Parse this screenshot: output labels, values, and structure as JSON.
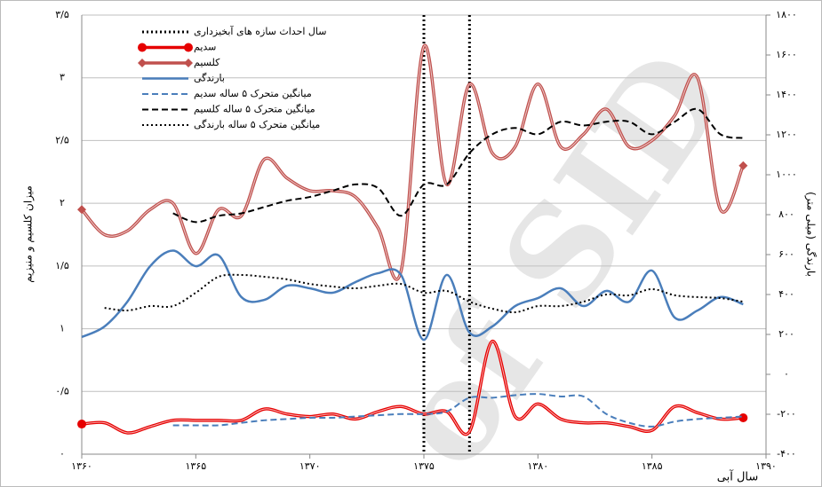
{
  "chart_data": {
    "type": "line",
    "x_title": "سال آبی",
    "y_title": "میزان کلسیم و منیزیم",
    "y2_title": "بارندگی (میلی متر)",
    "watermark": "of SID",
    "xlim": [
      1360,
      1390
    ],
    "xticks": [
      {
        "value": 1360,
        "label": "۱۳۶۰"
      },
      {
        "value": 1365,
        "label": "۱۳۶۵"
      },
      {
        "value": 1370,
        "label": "۱۳۷۰"
      },
      {
        "value": 1375,
        "label": "۱۳۷۵"
      },
      {
        "value": 1380,
        "label": "۱۳۸۰"
      },
      {
        "value": 1385,
        "label": "۱۳۸۵"
      },
      {
        "value": 1390,
        "label": "۱۳۹۰"
      }
    ],
    "ylim": [
      0,
      3.5
    ],
    "yticks": [
      {
        "value": 0,
        "label": "۰"
      },
      {
        "value": 0.5,
        "label": "۰/۵"
      },
      {
        "value": 1,
        "label": "۱"
      },
      {
        "value": 1.5,
        "label": "۱/۵"
      },
      {
        "value": 2,
        "label": "۲"
      },
      {
        "value": 2.5,
        "label": "۲/۵"
      },
      {
        "value": 3,
        "label": "۳"
      },
      {
        "value": 3.5,
        "label": "۳/۵"
      }
    ],
    "y2lim": [
      -400,
      1800
    ],
    "y2ticks": [
      {
        "value": -400,
        "label": "-۴۰۰"
      },
      {
        "value": -200,
        "label": "-۲۰۰"
      },
      {
        "value": 0,
        "label": "۰"
      },
      {
        "value": 200,
        "label": "۲۰۰"
      },
      {
        "value": 400,
        "label": "۴۰۰"
      },
      {
        "value": 600,
        "label": "۶۰۰"
      },
      {
        "value": 800,
        "label": "۸۰۰"
      },
      {
        "value": 1000,
        "label": "۱۰۰۰"
      },
      {
        "value": 1200,
        "label": "۱۲۰۰"
      },
      {
        "value": 1400,
        "label": "۱۴۰۰"
      },
      {
        "value": 1600,
        "label": "۱۶۰۰"
      },
      {
        "value": 1800,
        "label": "۱۸۰۰"
      }
    ],
    "grid": true,
    "vlines": {
      "name": "سال احداث سازه های آبخیزداری",
      "color": "#000000",
      "style": "dotted",
      "x": [
        1375,
        1377
      ]
    },
    "x": [
      1360,
      1361,
      1362,
      1363,
      1364,
      1365,
      1366,
      1367,
      1368,
      1369,
      1370,
      1371,
      1372,
      1373,
      1374,
      1375,
      1376,
      1377,
      1378,
      1379,
      1380,
      1381,
      1382,
      1383,
      1384,
      1385,
      1386,
      1387,
      1388,
      1389
    ],
    "series": [
      {
        "name": "سدیم",
        "color": "#e60000",
        "style": "double",
        "marker": "circle",
        "values": [
          0.24,
          0.25,
          0.17,
          0.22,
          0.27,
          0.27,
          0.27,
          0.27,
          0.36,
          0.32,
          0.3,
          0.32,
          0.28,
          0.34,
          0.38,
          0.32,
          0.34,
          0.18,
          0.9,
          0.3,
          0.4,
          0.28,
          0.25,
          0.25,
          0.22,
          0.19,
          0.38,
          0.33,
          0.28,
          0.29
        ]
      },
      {
        "name": "کلسیم",
        "color": "#c0504d",
        "style": "double",
        "marker": "diamond",
        "values": [
          1.95,
          1.75,
          1.78,
          1.95,
          2.0,
          1.6,
          1.95,
          1.9,
          2.35,
          2.2,
          2.1,
          2.1,
          2.05,
          1.8,
          1.46,
          3.25,
          2.15,
          2.95,
          2.4,
          2.45,
          2.95,
          2.45,
          2.55,
          2.75,
          2.45,
          2.5,
          2.7,
          3.0,
          1.95,
          2.3
        ]
      },
      {
        "name": "بارندگی",
        "color": "#4a7ebb",
        "style": "solid",
        "axis": "y2",
        "values": [
          187,
          240,
          364,
          542,
          620,
          542,
          596,
          387,
          373,
          444,
          431,
          409,
          462,
          507,
          498,
          173,
          498,
          209,
          240,
          342,
          382,
          431,
          342,
          418,
          364,
          520,
          284,
          320,
          387,
          351
        ]
      },
      {
        "name": "میانگین متحرک ۵ ساله سدیم",
        "color": "#4a7ebb",
        "style": "dashed",
        "values": [
          null,
          null,
          null,
          null,
          0.23,
          0.23,
          0.23,
          0.25,
          0.27,
          0.28,
          0.29,
          0.29,
          0.3,
          0.31,
          0.32,
          0.32,
          0.34,
          0.45,
          0.45,
          0.47,
          0.48,
          0.46,
          0.46,
          0.32,
          0.25,
          0.22,
          0.26,
          0.28,
          0.29,
          0.3
        ]
      },
      {
        "name": "میانگین متحرک ۵ ساله کلسیم",
        "color": "#000000",
        "style": "dashed",
        "values": [
          null,
          null,
          null,
          null,
          1.92,
          1.85,
          1.9,
          1.92,
          1.97,
          2.02,
          2.05,
          2.1,
          2.15,
          2.12,
          1.9,
          2.15,
          2.15,
          2.4,
          2.55,
          2.6,
          2.55,
          2.65,
          2.62,
          2.65,
          2.65,
          2.55,
          2.65,
          2.75,
          2.55,
          2.52
        ]
      },
      {
        "name": "میانگین متحرک ۵ ساله بارندگی",
        "color": "#000000",
        "style": "dotted",
        "axis": "y2",
        "values": [
          null,
          333,
          320,
          342,
          342,
          409,
          489,
          498,
          489,
          476,
          453,
          440,
          431,
          444,
          453,
          409,
          418,
          364,
          329,
          311,
          342,
          342,
          364,
          400,
          396,
          427,
          396,
          387,
          382,
          364
        ]
      }
    ]
  }
}
